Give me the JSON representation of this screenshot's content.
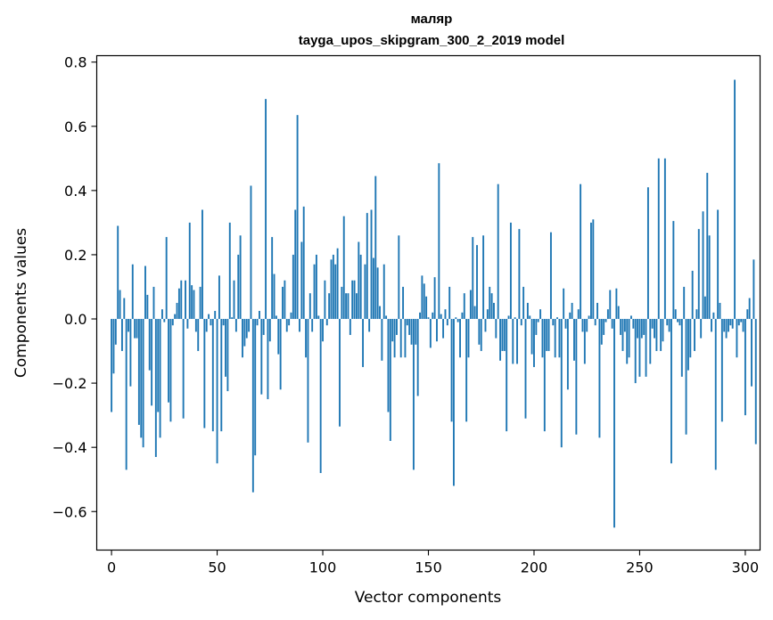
{
  "chart_data": {
    "type": "bar",
    "title": "маляр",
    "subtitle": "tayga_upos_skipgram_300_2_2019 model",
    "xlabel": "Vector components",
    "ylabel": "Components values",
    "xlim": [
      -7,
      307
    ],
    "ylim": [
      -0.72,
      0.82
    ],
    "xticks": [
      0,
      50,
      100,
      150,
      200,
      250,
      300
    ],
    "yticks": [
      -0.6,
      -0.4,
      -0.2,
      0.0,
      0.2,
      0.4,
      0.6,
      0.8
    ],
    "ytick_labels": [
      "−0.6",
      "−0.4",
      "−0.2",
      "0.0",
      "0.2",
      "0.4",
      "0.6",
      "0.8"
    ],
    "xtick_labels": [
      "0",
      "50",
      "100",
      "150",
      "200",
      "250",
      "300"
    ],
    "bar_color": "#1f77b4",
    "values": [
      -0.29,
      -0.17,
      -0.08,
      0.29,
      0.09,
      -0.1,
      0.065,
      -0.47,
      -0.04,
      -0.21,
      0.17,
      -0.06,
      -0.06,
      -0.33,
      -0.37,
      -0.4,
      0.165,
      0.075,
      -0.16,
      -0.27,
      0.1,
      -0.43,
      -0.29,
      -0.37,
      0.03,
      -0.01,
      0.255,
      -0.26,
      -0.32,
      -0.02,
      0.015,
      0.05,
      0.095,
      0.12,
      -0.31,
      0.12,
      -0.03,
      0.3,
      0.105,
      0.09,
      -0.04,
      -0.1,
      0.1,
      0.34,
      -0.34,
      -0.04,
      0.015,
      -0.02,
      -0.35,
      0.025,
      -0.45,
      0.135,
      -0.35,
      -0.02,
      -0.18,
      -0.225,
      0.3,
      0.005,
      0.12,
      -0.04,
      0.2,
      0.26,
      -0.12,
      -0.085,
      -0.06,
      -0.04,
      0.415,
      -0.54,
      -0.425,
      -0.02,
      0.025,
      -0.235,
      -0.05,
      0.685,
      -0.25,
      -0.07,
      0.255,
      0.14,
      0.01,
      -0.11,
      -0.22,
      0.1,
      0.12,
      -0.04,
      -0.02,
      0.02,
      0.2,
      0.34,
      0.635,
      -0.04,
      0.24,
      0.35,
      -0.12,
      -0.385,
      0.08,
      -0.04,
      0.17,
      0.2,
      0.01,
      -0.48,
      -0.07,
      0.12,
      -0.02,
      0.08,
      0.185,
      0.2,
      0.17,
      0.22,
      -0.335,
      0.1,
      0.32,
      0.08,
      0.08,
      -0.05,
      0.12,
      0.12,
      0.08,
      0.24,
      0.2,
      -0.15,
      0.17,
      0.33,
      -0.04,
      0.34,
      0.19,
      0.445,
      0.16,
      0.04,
      -0.13,
      0.17,
      0.01,
      -0.29,
      -0.38,
      -0.07,
      -0.12,
      -0.05,
      0.26,
      -0.12,
      0.1,
      -0.12,
      -0.02,
      -0.05,
      -0.08,
      -0.47,
      -0.08,
      -0.24,
      0.02,
      0.135,
      0.11,
      0.07,
      0.005,
      -0.09,
      0.02,
      0.13,
      -0.07,
      0.485,
      0.015,
      -0.06,
      0.03,
      -0.02,
      0.1,
      -0.32,
      -0.52,
      0.005,
      -0.01,
      -0.12,
      0.02,
      0.08,
      -0.32,
      -0.12,
      0.09,
      0.255,
      0.04,
      0.23,
      -0.08,
      -0.1,
      0.26,
      -0.04,
      0.03,
      0.1,
      0.08,
      0.05,
      -0.06,
      0.42,
      -0.13,
      -0.1,
      -0.1,
      -0.35,
      0.01,
      0.3,
      -0.14,
      0.005,
      -0.14,
      0.28,
      -0.02,
      0.1,
      -0.31,
      0.05,
      0.01,
      -0.11,
      -0.15,
      -0.05,
      -0.01,
      0.03,
      -0.12,
      -0.35,
      -0.1,
      -0.1,
      0.27,
      -0.02,
      -0.12,
      0.005,
      -0.12,
      -0.4,
      0.095,
      -0.03,
      -0.22,
      0.02,
      0.05,
      -0.13,
      -0.36,
      0.03,
      0.42,
      -0.04,
      -0.14,
      -0.04,
      0.01,
      0.3,
      0.31,
      -0.02,
      0.05,
      -0.37,
      -0.08,
      -0.05,
      -0.01,
      0.03,
      0.09,
      -0.03,
      -0.65,
      0.095,
      0.04,
      -0.05,
      -0.1,
      -0.04,
      -0.14,
      -0.12,
      0.01,
      -0.03,
      -0.2,
      -0.06,
      -0.18,
      -0.06,
      -0.05,
      -0.18,
      0.41,
      -0.14,
      -0.03,
      -0.06,
      -0.1,
      0.5,
      -0.1,
      -0.07,
      0.5,
      -0.02,
      -0.04,
      -0.45,
      0.305,
      0.03,
      -0.01,
      -0.02,
      -0.18,
      0.1,
      -0.36,
      -0.16,
      -0.12,
      0.15,
      -0.1,
      0.03,
      0.28,
      -0.06,
      0.335,
      0.07,
      0.455,
      0.26,
      -0.04,
      0.02,
      -0.47,
      0.34,
      0.05,
      -0.32,
      -0.04,
      -0.06,
      -0.04,
      -0.02,
      -0.03,
      0.745,
      -0.12,
      -0.02,
      -0.01,
      -0.04,
      -0.3,
      0.03,
      0.065,
      -0.21,
      0.185,
      -0.39
    ]
  }
}
